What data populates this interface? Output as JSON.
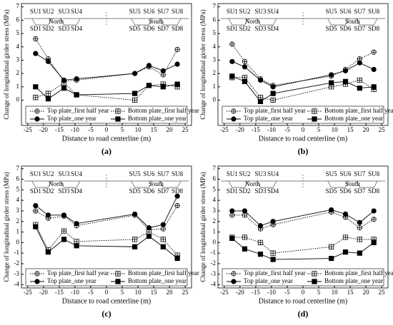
{
  "chart_data": [
    {
      "type": "line",
      "label": "(a)",
      "x_label": "Distance to road centerline (m)",
      "y_label": "Change of longitudinal girder stress (MPa)",
      "x": [
        -22.5,
        -18.5,
        -13.5,
        -9.5,
        9,
        13.5,
        18,
        22.5
      ],
      "xlim": [
        -27,
        27
      ],
      "xticks": [
        -25,
        -20,
        -15,
        -10,
        -5,
        0,
        5,
        10,
        15,
        20,
        25
      ],
      "ylim": [
        -1.9,
        7.25
      ],
      "yticks": [
        0,
        1,
        2,
        3,
        4,
        5,
        6,
        7
      ],
      "legend": "lower center",
      "top_labels": [
        "SU1",
        "SU2",
        "SU3",
        "SU4",
        "SU5",
        "SU6",
        "SU7",
        "SU8"
      ],
      "bottom_labels": [
        "SD1",
        "SD2",
        "SD3",
        "SD4",
        "SD5",
        "SD6",
        "SD7",
        "SD8"
      ],
      "region_labels": [
        "North",
        "South"
      ],
      "series": [
        {
          "name": "Top plate_first half year",
          "color": "#000000",
          "marker": "circle-plus",
          "line_style": "dotted",
          "values": [
            4.6,
            3.1,
            1.4,
            1.5,
            2.0,
            2.5,
            1.9,
            3.8
          ]
        },
        {
          "name": "Bottom plate_first half year",
          "color": "#000000",
          "marker": "square-plus",
          "line_style": "dotted",
          "values": [
            0.2,
            0.5,
            1.3,
            0.4,
            0.0,
            1.1,
            1.2,
            1.0
          ]
        },
        {
          "name": "Top plate_one year",
          "color": "#000000",
          "marker": "circle",
          "line_style": "solid",
          "values": [
            3.5,
            2.9,
            1.5,
            1.6,
            2.0,
            2.6,
            2.2,
            2.7
          ]
        },
        {
          "name": "Bottom plate_one year",
          "color": "#000000",
          "marker": "square",
          "line_style": "solid",
          "values": [
            1.0,
            0.1,
            0.9,
            0.4,
            0.5,
            1.1,
            1.0,
            1.2
          ]
        }
      ]
    },
    {
      "type": "line",
      "label": "(b)",
      "x_label": "Distance to road centerline (m)",
      "y_label": "Change of longitudinal girder stress (MPa)",
      "x": [
        -22.5,
        -18.5,
        -13.5,
        -9.5,
        9,
        13.5,
        18,
        22.5
      ],
      "xlim": [
        -27,
        27
      ],
      "xticks": [
        -25,
        -20,
        -15,
        -10,
        -5,
        0,
        5,
        10,
        15,
        20,
        25
      ],
      "ylim": [
        -1.9,
        7.25
      ],
      "yticks": [
        0,
        1,
        2,
        3,
        4,
        5,
        6,
        7
      ],
      "legend": "lower center",
      "top_labels": [
        "SU1",
        "SU2",
        "SU3",
        "SU4",
        "SU5",
        "SU6",
        "SU7",
        "SU8"
      ],
      "bottom_labels": [
        "SD1",
        "SD2",
        "SD3",
        "SD4",
        "SD5",
        "SD6",
        "SD7",
        "SD8"
      ],
      "region_labels": [
        "North",
        "South"
      ],
      "series": [
        {
          "name": "Top plate_first half year",
          "color": "#000000",
          "marker": "circle-plus",
          "line_style": "dotted",
          "values": [
            4.2,
            2.9,
            1.6,
            1.1,
            1.8,
            2.3,
            3.1,
            3.6
          ]
        },
        {
          "name": "Bottom plate_first half year",
          "color": "#000000",
          "marker": "square-plus",
          "line_style": "dotted",
          "values": [
            1.7,
            1.7,
            0.2,
            0.0,
            1.0,
            1.2,
            1.5,
            0.8
          ]
        },
        {
          "name": "Top plate_one year",
          "color": "#000000",
          "marker": "circle",
          "line_style": "solid",
          "values": [
            2.9,
            2.5,
            1.5,
            1.0,
            1.9,
            2.2,
            2.8,
            2.3
          ]
        },
        {
          "name": "Bottom plate_one year",
          "color": "#000000",
          "marker": "square",
          "line_style": "solid",
          "values": [
            1.8,
            1.4,
            -0.1,
            0.5,
            1.3,
            1.4,
            0.9,
            1.0
          ]
        }
      ]
    },
    {
      "type": "line",
      "label": "(c)",
      "x_label": "Distance to road centerline (m)",
      "y_label": "Change of longitudinal girder stress (MPa)",
      "x": [
        -22.5,
        -18.5,
        -13.5,
        -9.5,
        9,
        13.5,
        18,
        22.5
      ],
      "xlim": [
        -27,
        27
      ],
      "xticks": [
        -25,
        -20,
        -15,
        -10,
        -5,
        0,
        5,
        10,
        15,
        20,
        25
      ],
      "ylim": [
        -4.3,
        7.25
      ],
      "yticks": [
        -4,
        -3,
        -2,
        -1,
        0,
        1,
        2,
        3,
        4,
        5,
        6,
        7
      ],
      "legend": "lower center",
      "top_labels": [
        "SU1",
        "SU2",
        "SU3",
        "SU4",
        "SU5",
        "SU6",
        "SU7",
        "SU8"
      ],
      "bottom_labels": [
        "SD1",
        "SD2",
        "SD3",
        "SD4",
        "SD5",
        "SD6",
        "SD7",
        "SD8"
      ],
      "region_labels": [
        "North",
        "South"
      ],
      "series": [
        {
          "name": "Top plate_first half year",
          "color": "#000000",
          "marker": "circle-plus",
          "line_style": "dotted",
          "values": [
            3.0,
            2.3,
            2.5,
            1.6,
            2.6,
            1.2,
            1.3,
            3.5
          ]
        },
        {
          "name": "Bottom plate_first half year",
          "color": "#000000",
          "marker": "square-plus",
          "line_style": "dotted",
          "values": [
            1.7,
            -0.7,
            1.1,
            0.1,
            0.3,
            1.0,
            0.3,
            -1.2
          ]
        },
        {
          "name": "Top plate_one year",
          "color": "#000000",
          "marker": "circle",
          "line_style": "solid",
          "values": [
            3.5,
            2.6,
            2.6,
            1.8,
            2.7,
            1.4,
            1.7,
            4.4
          ]
        },
        {
          "name": "Bottom plate_one year",
          "color": "#000000",
          "marker": "square",
          "line_style": "solid",
          "values": [
            1.5,
            -0.9,
            0.3,
            -0.3,
            -0.4,
            0.6,
            -0.4,
            -1.5
          ]
        }
      ]
    },
    {
      "type": "line",
      "label": "(d)",
      "x_label": "Distance to road centerline (m)",
      "y_label": "Change of longitudinal girder stress (MPa)",
      "x": [
        -22.5,
        -18.5,
        -13.5,
        -9.5,
        9,
        13.5,
        18,
        22.5
      ],
      "xlim": [
        -27,
        27
      ],
      "xticks": [
        -25,
        -20,
        -15,
        -10,
        -5,
        0,
        5,
        10,
        15,
        20,
        25
      ],
      "ylim": [
        -4.3,
        7.25
      ],
      "yticks": [
        -4,
        -3,
        -2,
        -1,
        0,
        1,
        2,
        3,
        4,
        5,
        6,
        7
      ],
      "legend": "lower center",
      "top_labels": [
        "SU1",
        "SU2",
        "SU3",
        "SU4",
        "SU5",
        "SU6",
        "SU7",
        "SU8"
      ],
      "bottom_labels": [
        "SD1",
        "SD2",
        "SD3",
        "SD4",
        "SD5",
        "SD6",
        "SD7",
        "SD8"
      ],
      "region_labels": [
        "North",
        "South"
      ],
      "series": [
        {
          "name": "Top plate_first half year",
          "color": "#000000",
          "marker": "circle-plus",
          "line_style": "dotted",
          "values": [
            2.6,
            2.6,
            1.3,
            1.7,
            2.9,
            2.4,
            1.4,
            2.2
          ]
        },
        {
          "name": "Bottom plate_first half year",
          "color": "#000000",
          "marker": "square-plus",
          "line_style": "dotted",
          "values": [
            0.5,
            0.5,
            0.0,
            -1.0,
            -0.4,
            0.5,
            0.3,
            0.3
          ]
        },
        {
          "name": "Top plate_one year",
          "color": "#000000",
          "marker": "circle",
          "line_style": "solid",
          "values": [
            3.0,
            3.0,
            1.6,
            2.0,
            3.1,
            2.7,
            1.9,
            3.0
          ]
        },
        {
          "name": "Bottom plate_one year",
          "color": "#000000",
          "marker": "square",
          "line_style": "solid",
          "values": [
            0.4,
            -0.6,
            -1.1,
            -1.6,
            -1.5,
            -0.9,
            -1.0,
            0.0
          ]
        }
      ]
    }
  ]
}
